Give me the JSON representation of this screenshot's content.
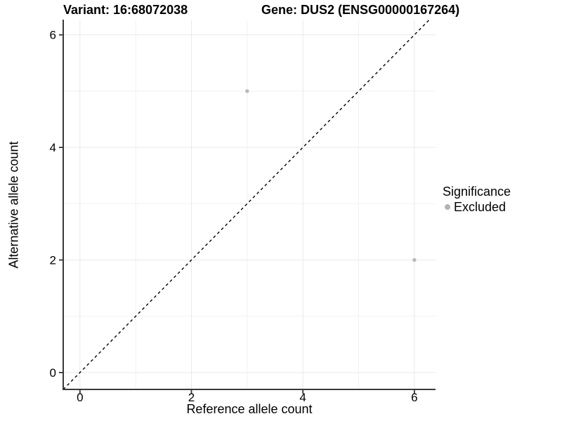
{
  "header": {
    "variant_title": "Variant: 16:68072038",
    "gene_title": "Gene: DUS2 (ENSG00000167264)"
  },
  "chart_data": {
    "type": "scatter",
    "xlabel": "Reference allele count",
    "ylabel": "Alternative allele count",
    "xlim": [
      -0.3,
      6.38
    ],
    "ylim": [
      -0.3,
      6.27
    ],
    "x_ticks": [
      0,
      2,
      4,
      6
    ],
    "y_ticks": [
      0,
      2,
      4,
      6
    ],
    "x_tick_labels": [
      "0",
      "2",
      "4",
      "6"
    ],
    "y_tick_labels": [
      "0",
      "2",
      "4",
      "6"
    ],
    "x_minor": [
      1,
      3,
      5
    ],
    "y_minor": [
      1,
      3,
      5
    ],
    "grid": true,
    "identity_line": {
      "slope": 1,
      "intercept": 0,
      "style": "dashed",
      "color": "#000000"
    },
    "series": [
      {
        "name": "Excluded",
        "color": "#b9b9b9",
        "points": [
          {
            "x": 3,
            "y": 5
          },
          {
            "x": 6,
            "y": 2
          }
        ]
      }
    ],
    "legend": {
      "title": "Significance",
      "position": "right",
      "items": [
        {
          "label": "Excluded",
          "color": "#b3b3b3"
        }
      ]
    }
  },
  "colors": {
    "background": "#ffffff",
    "grid_major": "#e9e9e9",
    "grid_minor": "#f2f2f2",
    "axis_line": "#3a3a3a",
    "tick_mark": "#333333",
    "text": "#000000"
  }
}
